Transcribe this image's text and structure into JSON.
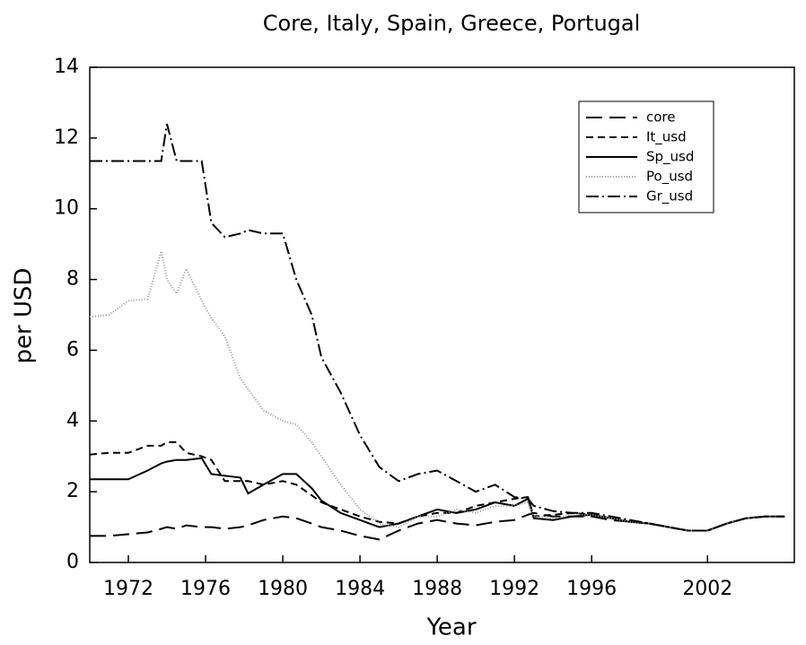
{
  "chart_data": {
    "type": "line",
    "title": "Core, Italy, Spain, Greece, Portugal",
    "x_label": "Year",
    "y_label": "per USD",
    "x": [
      1970,
      1971,
      1972,
      1973,
      1973.7,
      1974,
      1974.5,
      1975,
      1975.8,
      1976.3,
      1977,
      1977.8,
      1978.2,
      1979,
      1980,
      1980.7,
      1981.5,
      1982,
      1983,
      1984,
      1985,
      1986,
      1987,
      1988,
      1989,
      1990,
      1991,
      1992,
      1992.7,
      1993,
      1994,
      1995,
      1996,
      1997,
      1998,
      1999,
      2000,
      2001,
      2002,
      2003,
      2004,
      2005,
      2006
    ],
    "series": [
      {
        "name": "core",
        "color": "#000000",
        "dash": "18,8",
        "values": [
          0.75,
          0.75,
          0.8,
          0.85,
          0.95,
          1.0,
          0.95,
          1.05,
          1.0,
          1.0,
          0.95,
          1.0,
          1.05,
          1.2,
          1.3,
          1.25,
          1.1,
          1.0,
          0.9,
          0.75,
          0.65,
          0.9,
          1.1,
          1.2,
          1.1,
          1.05,
          1.15,
          1.2,
          1.35,
          1.4,
          1.3,
          1.3,
          1.3,
          1.2,
          1.15,
          1.1,
          1.0,
          0.9,
          0.9,
          1.1,
          1.25,
          1.3,
          1.3
        ]
      },
      {
        "name": "It_usd",
        "color": "#000000",
        "dash": "8,5",
        "values": [
          3.05,
          3.1,
          3.1,
          3.3,
          3.3,
          3.4,
          3.4,
          3.1,
          3.0,
          2.9,
          2.3,
          2.3,
          2.3,
          2.2,
          2.3,
          2.2,
          1.9,
          1.7,
          1.5,
          1.3,
          1.15,
          1.1,
          1.3,
          1.4,
          1.4,
          1.6,
          1.7,
          1.8,
          1.85,
          1.3,
          1.35,
          1.4,
          1.35,
          1.25,
          1.15,
          1.1,
          1.0,
          0.9,
          0.9,
          1.1,
          1.25,
          1.3,
          1.3
        ]
      },
      {
        "name": "Sp_usd",
        "color": "#000000",
        "dash": "none",
        "values": [
          2.35,
          2.35,
          2.35,
          2.6,
          2.8,
          2.85,
          2.9,
          2.9,
          2.95,
          2.5,
          2.45,
          2.4,
          1.95,
          2.2,
          2.5,
          2.5,
          2.1,
          1.75,
          1.4,
          1.2,
          1.0,
          1.1,
          1.3,
          1.5,
          1.4,
          1.5,
          1.7,
          1.6,
          1.8,
          1.25,
          1.2,
          1.3,
          1.35,
          1.25,
          1.15,
          1.1,
          1.0,
          0.9,
          0.9,
          1.1,
          1.25,
          1.3,
          1.3
        ]
      },
      {
        "name": "Po_usd",
        "color": "#999999",
        "dash": "1,2",
        "values": [
          6.95,
          7.0,
          7.4,
          7.45,
          8.8,
          8.0,
          7.6,
          8.3,
          7.4,
          6.9,
          6.4,
          5.2,
          4.9,
          4.3,
          4.0,
          3.9,
          3.4,
          3.0,
          2.2,
          1.5,
          1.1,
          1.0,
          1.3,
          1.3,
          1.5,
          1.4,
          1.6,
          1.6,
          1.7,
          1.3,
          1.25,
          1.35,
          1.35,
          1.25,
          1.15,
          1.1,
          1.0,
          0.9,
          0.9,
          1.1,
          1.25,
          1.3,
          1.3
        ]
      },
      {
        "name": "Gr_usd",
        "color": "#000000",
        "dash": "14,4,2,4",
        "values": [
          11.35,
          11.35,
          11.35,
          11.35,
          11.35,
          12.4,
          11.35,
          11.35,
          11.35,
          9.6,
          9.2,
          9.3,
          9.4,
          9.3,
          9.3,
          8.0,
          7.0,
          5.8,
          4.8,
          3.6,
          2.7,
          2.3,
          2.5,
          2.6,
          2.3,
          2.0,
          2.2,
          1.85,
          1.8,
          1.6,
          1.45,
          1.4,
          1.4,
          1.3,
          1.2,
          1.1,
          1.0,
          0.9,
          0.9,
          1.1,
          1.25,
          1.3,
          1.3
        ]
      }
    ],
    "xlim": [
      1970,
      2006.5
    ],
    "xticks": [
      1972,
      1976,
      1980,
      1984,
      1988,
      1992,
      1996,
      2002
    ],
    "ylim": [
      0,
      14
    ],
    "yticks": [
      0,
      2,
      4,
      6,
      8,
      10,
      12,
      14
    ],
    "legend": "upper right",
    "grid": false
  }
}
